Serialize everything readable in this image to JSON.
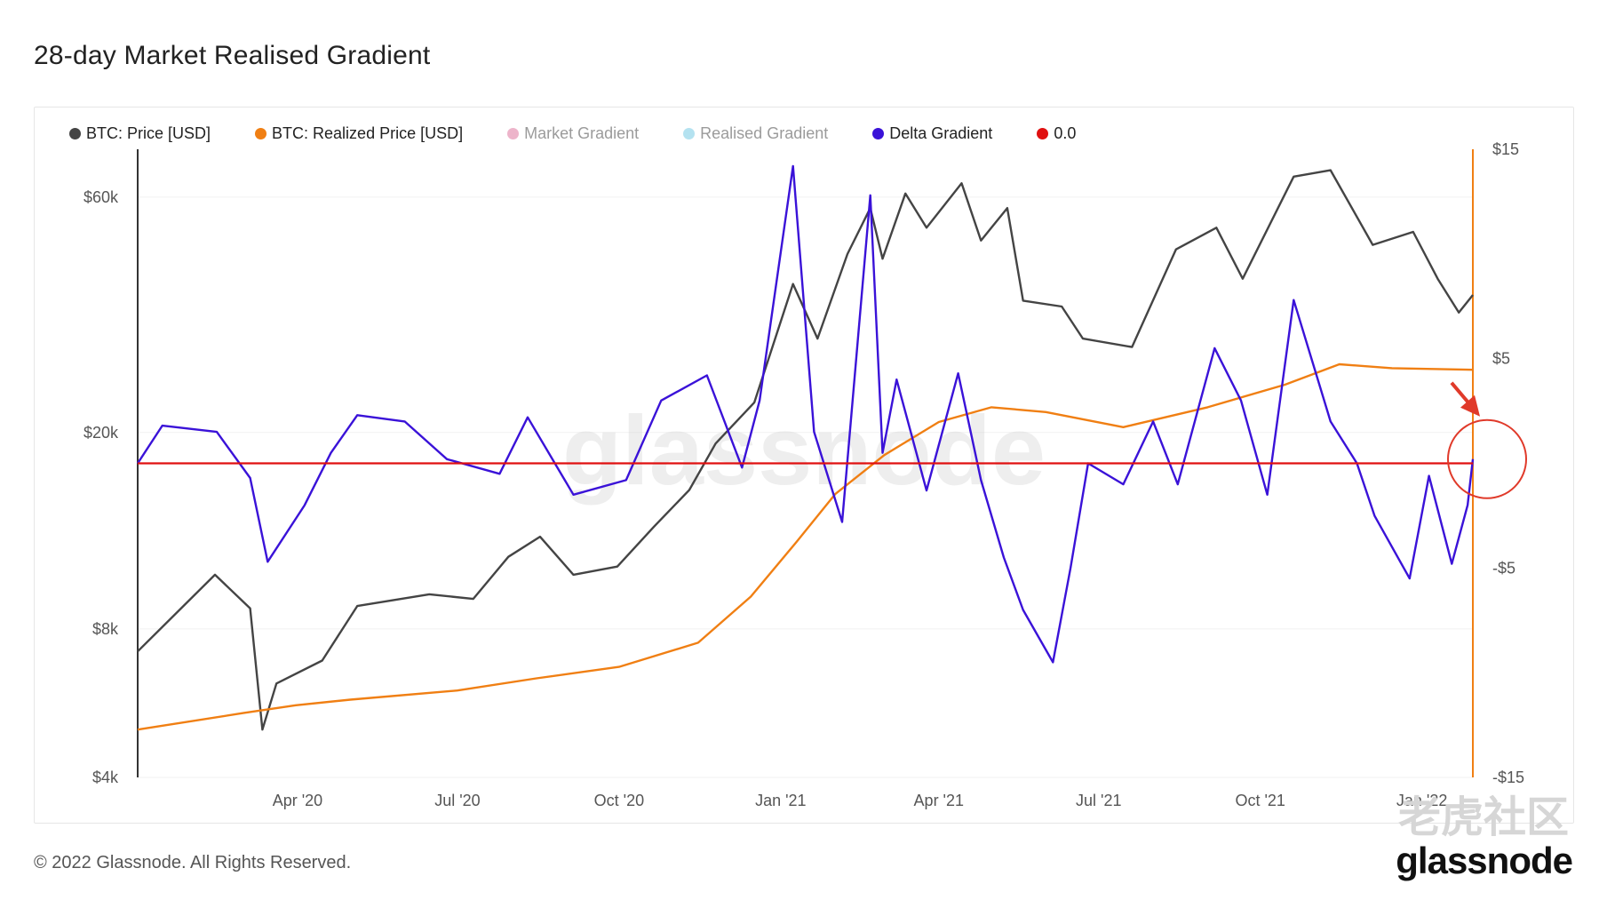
{
  "title": "28-day Market Realised Gradient",
  "legend": [
    {
      "label": "BTC: Price [USD]",
      "color": "#444444",
      "muted": false
    },
    {
      "label": "BTC: Realized Price [USD]",
      "color": "#f07f13",
      "muted": false
    },
    {
      "label": "Market Gradient",
      "color": "#d85a8c",
      "muted": true
    },
    {
      "label": "Realised Gradient",
      "color": "#5bc0de",
      "muted": true
    },
    {
      "label": "Delta Gradient",
      "color": "#3a12d8",
      "muted": false
    },
    {
      "label": "0.0",
      "color": "#e01010",
      "muted": false
    }
  ],
  "footer": {
    "copyright": "© 2022 Glassnode. All Rights Reserved.",
    "brand": "glassnode",
    "overlay_watermark": "老虎社区"
  },
  "watermark": "glassnode",
  "chart_data": {
    "type": "line",
    "x_ticks": [
      "Apr '20",
      "Jul '20",
      "Oct '20",
      "Jan '21",
      "Apr '21",
      "Jul '21",
      "Oct '21",
      "Jan '22"
    ],
    "y_left": {
      "scale": "log",
      "ticks": [
        "$4k",
        "$8k",
        "$20k",
        "$60k"
      ],
      "unit": "USD"
    },
    "y_right": {
      "scale": "linear",
      "ticks": [
        "$15",
        "$5",
        "-$5",
        "-$15"
      ],
      "range": [
        -15,
        15
      ]
    },
    "x_range": [
      "2020-01-01",
      "2022-01-30"
    ],
    "series": [
      {
        "name": "BTC: Price [USD]",
        "axis": "left",
        "color": "#444444",
        "points": [
          [
            "2020-01-01",
            7200
          ],
          [
            "2020-02-14",
            10300
          ],
          [
            "2020-03-05",
            8800
          ],
          [
            "2020-03-12",
            5000
          ],
          [
            "2020-03-20",
            6200
          ],
          [
            "2020-04-15",
            6900
          ],
          [
            "2020-05-05",
            8900
          ],
          [
            "2020-06-15",
            9400
          ],
          [
            "2020-07-10",
            9200
          ],
          [
            "2020-07-30",
            11200
          ],
          [
            "2020-08-17",
            12300
          ],
          [
            "2020-09-05",
            10300
          ],
          [
            "2020-09-30",
            10700
          ],
          [
            "2020-10-21",
            12900
          ],
          [
            "2020-11-10",
            15300
          ],
          [
            "2020-11-25",
            19000
          ],
          [
            "2020-12-17",
            23000
          ],
          [
            "2021-01-08",
            40000
          ],
          [
            "2021-01-22",
            31000
          ],
          [
            "2021-02-08",
            46000
          ],
          [
            "2021-02-21",
            57000
          ],
          [
            "2021-02-28",
            45000
          ],
          [
            "2021-03-13",
            61000
          ],
          [
            "2021-03-25",
            52000
          ],
          [
            "2021-04-14",
            64000
          ],
          [
            "2021-04-25",
            49000
          ],
          [
            "2021-05-10",
            57000
          ],
          [
            "2021-05-19",
            37000
          ],
          [
            "2021-06-10",
            36000
          ],
          [
            "2021-06-22",
            31000
          ],
          [
            "2021-07-20",
            29800
          ],
          [
            "2021-08-14",
            47000
          ],
          [
            "2021-09-06",
            52000
          ],
          [
            "2021-09-21",
            41000
          ],
          [
            "2021-10-20",
            66000
          ],
          [
            "2021-11-10",
            68000
          ],
          [
            "2021-12-04",
            48000
          ],
          [
            "2021-12-27",
            51000
          ],
          [
            "2022-01-10",
            41000
          ],
          [
            "2022-01-22",
            35000
          ],
          [
            "2022-01-30",
            38000
          ]
        ]
      },
      {
        "name": "BTC: Realized Price [USD]",
        "axis": "left",
        "color": "#f07f13",
        "points": [
          [
            "2020-01-01",
            5000
          ],
          [
            "2020-03-01",
            5400
          ],
          [
            "2020-03-31",
            5600
          ],
          [
            "2020-05-01",
            5750
          ],
          [
            "2020-07-01",
            6000
          ],
          [
            "2020-08-15",
            6350
          ],
          [
            "2020-10-01",
            6700
          ],
          [
            "2020-11-15",
            7500
          ],
          [
            "2020-12-15",
            9300
          ],
          [
            "2021-01-10",
            12000
          ],
          [
            "2021-02-01",
            15000
          ],
          [
            "2021-03-01",
            18000
          ],
          [
            "2021-04-01",
            21000
          ],
          [
            "2021-05-01",
            22500
          ],
          [
            "2021-06-01",
            22000
          ],
          [
            "2021-07-15",
            20500
          ],
          [
            "2021-09-01",
            22500
          ],
          [
            "2021-10-15",
            25000
          ],
          [
            "2021-11-15",
            27500
          ],
          [
            "2021-12-15",
            27000
          ],
          [
            "2022-01-30",
            26800
          ]
        ]
      },
      {
        "name": "Delta Gradient",
        "axis": "right",
        "color": "#3a12d8",
        "points": [
          [
            "2020-01-01",
            0
          ],
          [
            "2020-01-15",
            1.8
          ],
          [
            "2020-02-15",
            1.5
          ],
          [
            "2020-03-05",
            -0.7
          ],
          [
            "2020-03-15",
            -4.7
          ],
          [
            "2020-04-05",
            -2
          ],
          [
            "2020-04-20",
            0.5
          ],
          [
            "2020-05-05",
            2.3
          ],
          [
            "2020-06-01",
            2
          ],
          [
            "2020-06-25",
            0.2
          ],
          [
            "2020-07-25",
            -0.5
          ],
          [
            "2020-08-10",
            2.2
          ],
          [
            "2020-09-05",
            -1.5
          ],
          [
            "2020-10-05",
            -0.8
          ],
          [
            "2020-10-25",
            3
          ],
          [
            "2020-11-20",
            4.2
          ],
          [
            "2020-12-10",
            -0.2
          ],
          [
            "2020-12-20",
            3
          ],
          [
            "2021-01-08",
            14.2
          ],
          [
            "2021-01-20",
            1.5
          ],
          [
            "2021-02-05",
            -2.8
          ],
          [
            "2021-02-21",
            12.8
          ],
          [
            "2021-02-28",
            0.5
          ],
          [
            "2021-03-08",
            4
          ],
          [
            "2021-03-25",
            -1.3
          ],
          [
            "2021-04-12",
            4.3
          ],
          [
            "2021-04-25",
            -0.8
          ],
          [
            "2021-05-08",
            -4.5
          ],
          [
            "2021-05-19",
            -7
          ],
          [
            "2021-06-05",
            -9.5
          ],
          [
            "2021-06-15",
            -5
          ],
          [
            "2021-06-25",
            0
          ],
          [
            "2021-07-15",
            -1
          ],
          [
            "2021-08-01",
            2
          ],
          [
            "2021-08-15",
            -1
          ],
          [
            "2021-09-05",
            5.5
          ],
          [
            "2021-09-20",
            3
          ],
          [
            "2021-10-05",
            -1.5
          ],
          [
            "2021-10-20",
            7.8
          ],
          [
            "2021-11-10",
            2
          ],
          [
            "2021-11-25",
            0
          ],
          [
            "2021-12-05",
            -2.5
          ],
          [
            "2021-12-25",
            -5.5
          ],
          [
            "2022-01-05",
            -0.6
          ],
          [
            "2022-01-18",
            -4.8
          ],
          [
            "2022-01-27",
            -2
          ],
          [
            "2022-01-30",
            0.2
          ]
        ]
      },
      {
        "name": "0.0",
        "axis": "right",
        "color": "#e01010",
        "points": [
          [
            "2020-01-01",
            0
          ],
          [
            "2022-01-30",
            0
          ]
        ]
      }
    ],
    "annotations": [
      "red circle with arrow at latest Delta Gradient value crossing 0.0"
    ]
  }
}
